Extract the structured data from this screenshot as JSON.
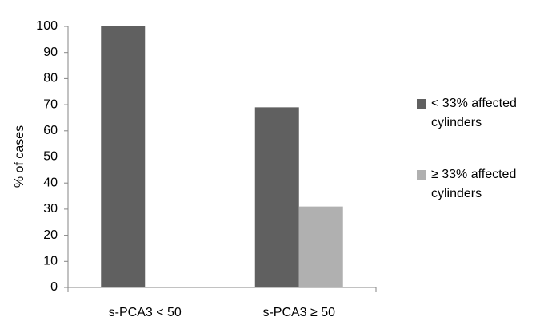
{
  "chart_data": {
    "type": "bar",
    "categories": [
      "s-PCA3 < 50",
      "s-PCA3 ≥ 50"
    ],
    "series": [
      {
        "name": "< 33% affected cylinders",
        "values": [
          100,
          69
        ],
        "color": "#606060"
      },
      {
        "name": "≥ 33% affected cylinders",
        "values": [
          0,
          31
        ],
        "color": "#b0b0b0"
      }
    ],
    "ylabel": "% of cases",
    "xlabel": "",
    "ylim": [
      0,
      100
    ],
    "yticks": [
      0,
      10,
      20,
      30,
      40,
      50,
      60,
      70,
      80,
      90,
      100
    ],
    "grid": false,
    "legend_position": "right",
    "legend": [
      {
        "line1": "< 33% affected",
        "line2": "cylinders"
      },
      {
        "line1": "≥ 33% affected",
        "line2": "cylinders"
      }
    ]
  }
}
